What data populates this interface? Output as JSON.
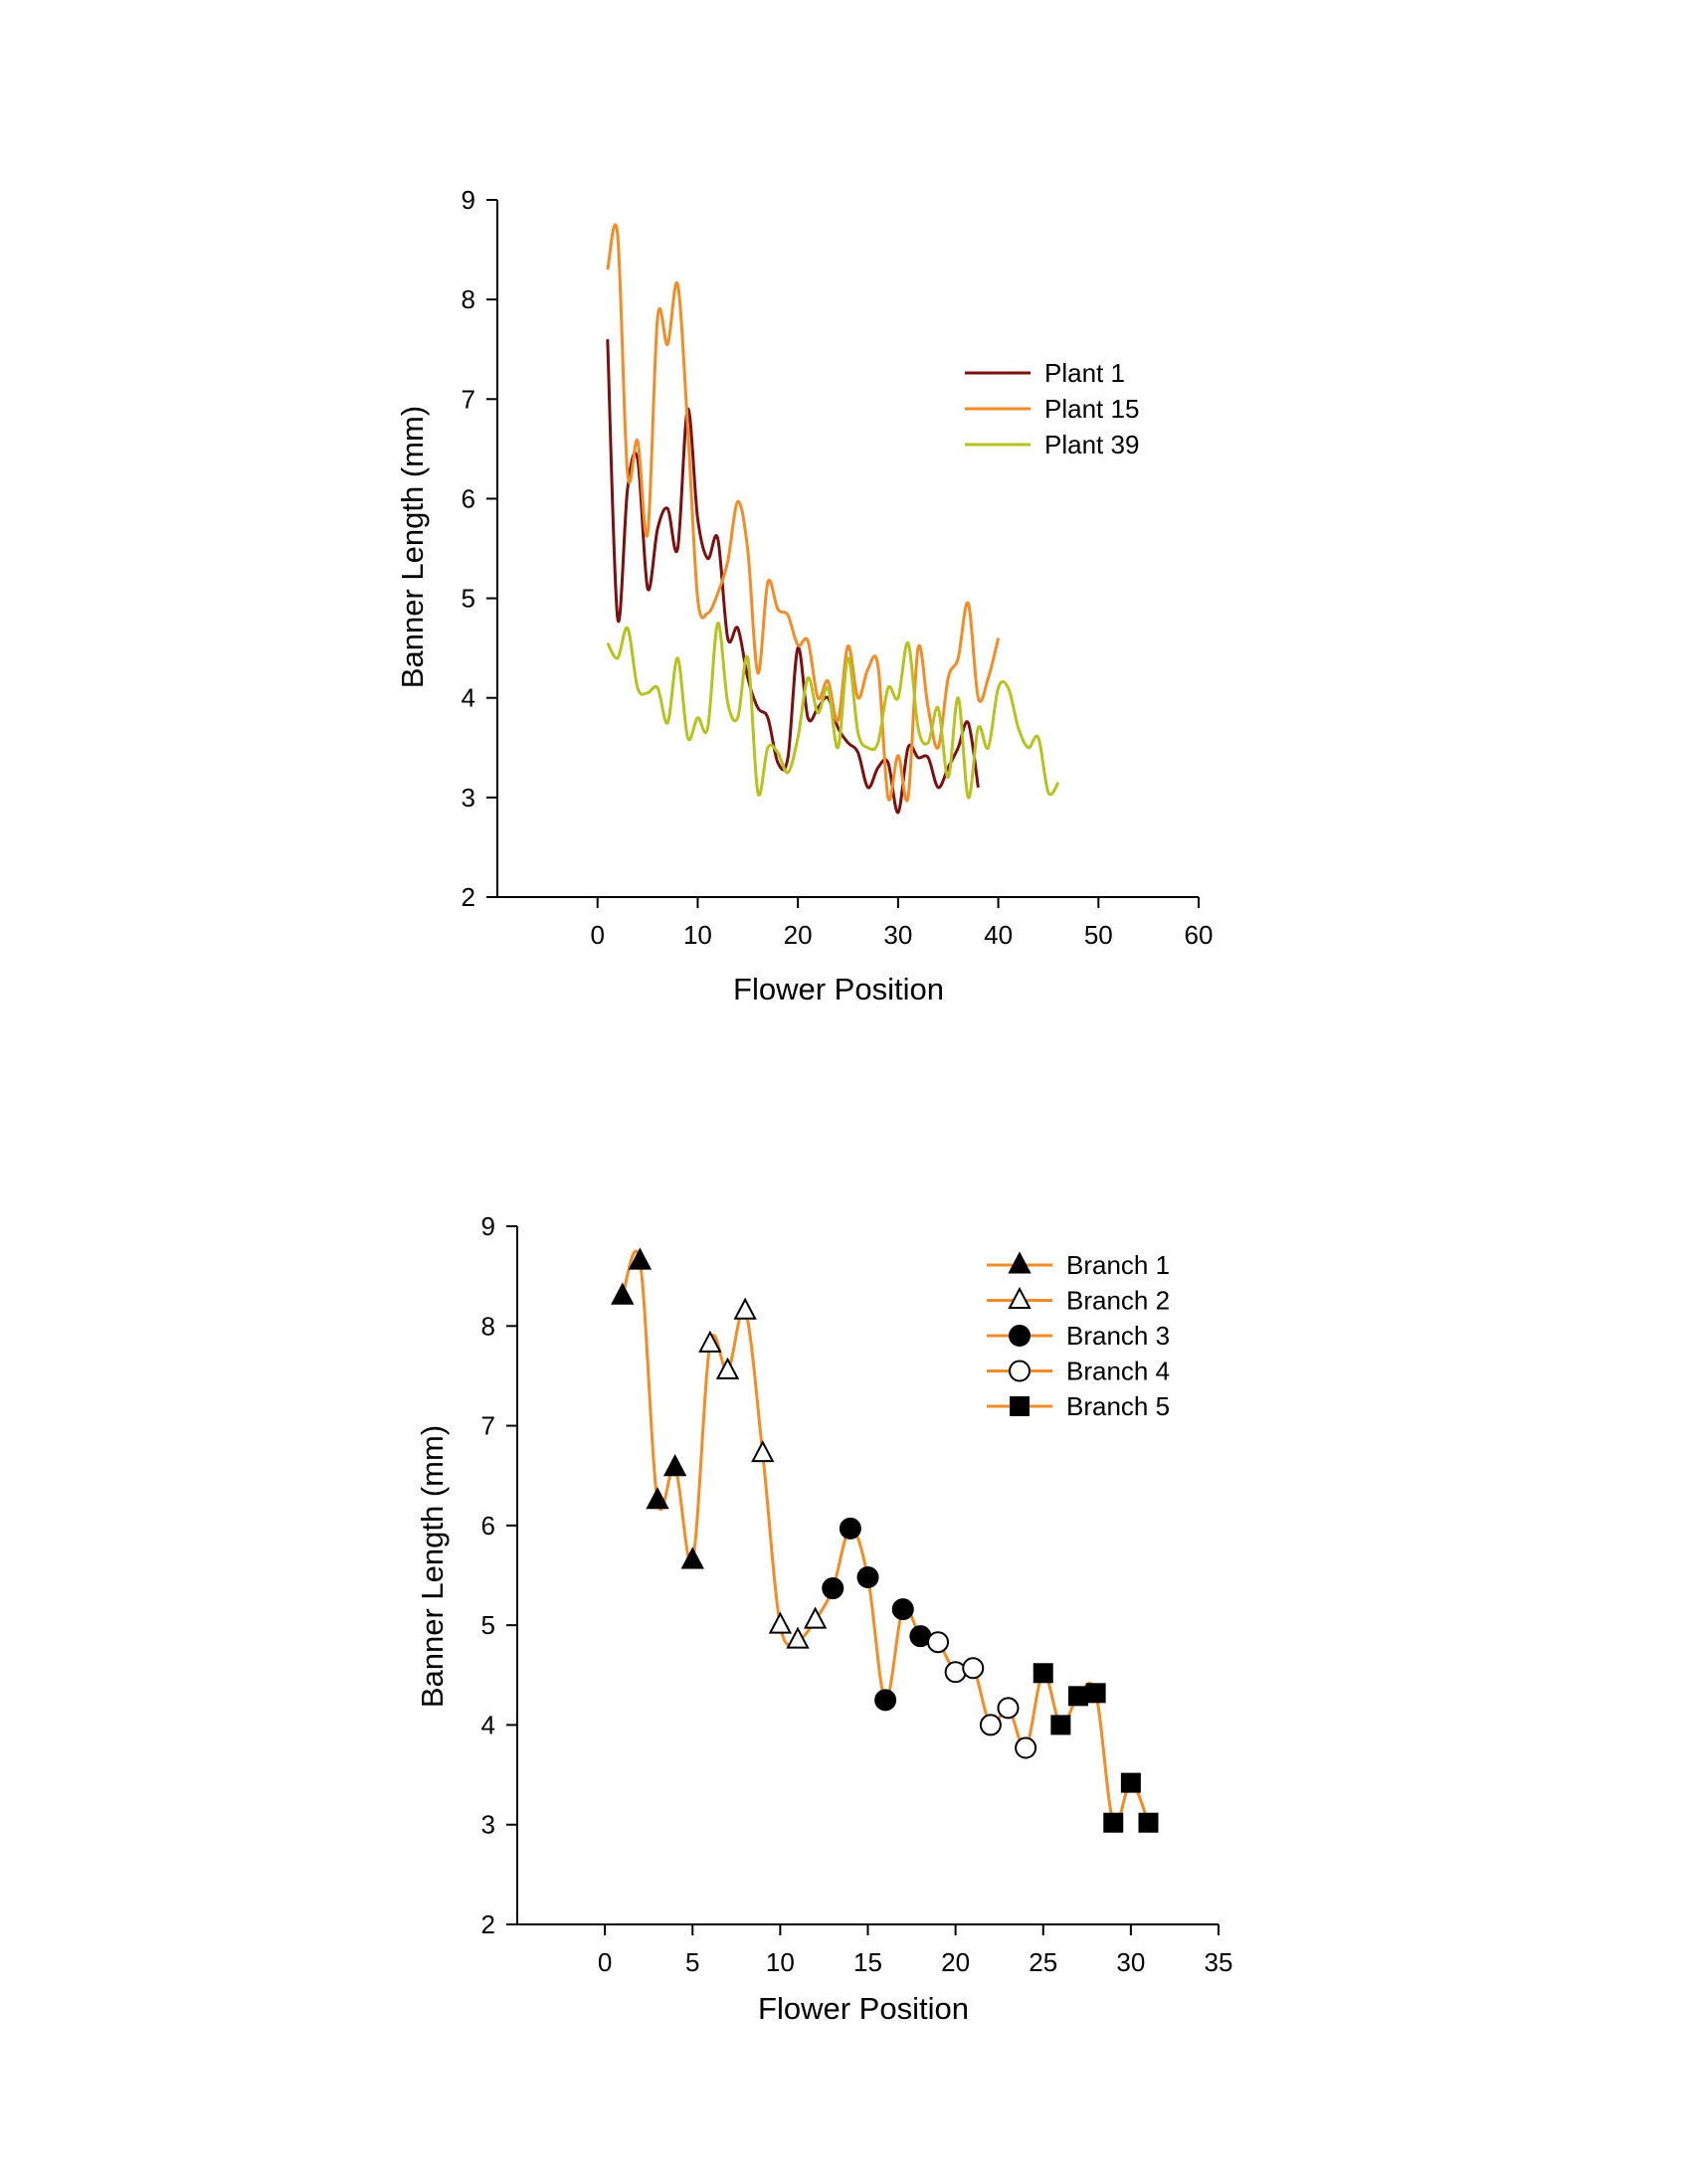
{
  "chart_data": [
    {
      "type": "line",
      "xlabel": "Flower Position",
      "ylabel": "Banner Length (mm)",
      "xlim": [
        -10,
        60
      ],
      "ylim": [
        2,
        9
      ],
      "xticks": [
        0,
        10,
        20,
        30,
        40,
        50,
        60
      ],
      "yticks": [
        2,
        3,
        4,
        5,
        6,
        7,
        8,
        9
      ],
      "legend_position": "top-right",
      "series": [
        {
          "name": "Plant 1",
          "color": "#7a1010",
          "x": [
            1,
            2,
            3,
            4,
            5,
            6,
            7,
            8,
            9,
            10,
            11,
            12,
            13,
            14,
            15,
            16,
            17,
            18,
            19,
            20,
            21,
            22,
            23,
            24,
            25,
            26,
            27,
            28,
            29,
            30,
            31,
            32,
            33,
            34,
            35,
            36,
            37,
            38,
            39
          ],
          "y": [
            7.6,
            4.8,
            6.1,
            6.4,
            5.1,
            5.7,
            5.9,
            5.5,
            6.9,
            5.8,
            5.4,
            5.6,
            4.6,
            4.7,
            4.2,
            3.9,
            3.8,
            3.35,
            3.4,
            4.5,
            3.8,
            3.9,
            4.0,
            3.7,
            3.55,
            3.45,
            3.1,
            3.3,
            3.35,
            2.85,
            3.5,
            3.4,
            3.4,
            3.1,
            3.3,
            3.5,
            3.75,
            3.1,
            null
          ]
        },
        {
          "name": "Plant 15",
          "color": "#f28c28",
          "x": [
            1,
            2,
            3,
            4,
            5,
            6,
            7,
            8,
            9,
            10,
            11,
            12,
            13,
            14,
            15,
            16,
            17,
            18,
            19,
            20,
            21,
            22,
            23,
            24,
            25,
            26,
            27,
            28,
            29,
            30,
            31,
            32,
            33,
            34,
            35,
            36,
            37,
            38,
            39,
            40
          ],
          "y": [
            8.3,
            8.65,
            6.25,
            6.58,
            5.65,
            7.82,
            7.55,
            8.15,
            6.72,
            5.0,
            4.85,
            5.05,
            5.37,
            5.97,
            5.48,
            4.25,
            5.16,
            4.89,
            4.83,
            4.53,
            4.57,
            4.0,
            4.17,
            3.77,
            4.52,
            4.0,
            4.29,
            4.32,
            3.0,
            3.42,
            3.0,
            4.5,
            3.9,
            3.5,
            4.2,
            4.4,
            4.95,
            4.0,
            4.2,
            4.6
          ]
        },
        {
          "name": "Plant 39",
          "color": "#b5c21f",
          "x": [
            1,
            2,
            3,
            4,
            5,
            6,
            7,
            8,
            9,
            10,
            11,
            12,
            13,
            14,
            15,
            16,
            17,
            18,
            19,
            20,
            21,
            22,
            23,
            24,
            25,
            26,
            27,
            28,
            29,
            30,
            31,
            32,
            33,
            34,
            35,
            36,
            37,
            38,
            39,
            40,
            41,
            42,
            43,
            44,
            45,
            46,
            47,
            48,
            49
          ],
          "y": [
            4.55,
            4.4,
            4.7,
            4.1,
            4.05,
            4.1,
            3.75,
            4.4,
            3.6,
            3.8,
            3.7,
            4.75,
            3.95,
            3.8,
            4.4,
            3.05,
            3.5,
            3.45,
            3.25,
            3.6,
            4.2,
            3.85,
            4.1,
            3.5,
            4.4,
            3.65,
            3.5,
            3.55,
            4.1,
            4.0,
            4.55,
            3.7,
            3.55,
            3.9,
            3.2,
            4.0,
            3.0,
            3.7,
            3.5,
            4.1,
            4.1,
            3.7,
            3.5,
            3.6,
            3.05,
            3.15,
            null,
            null,
            null
          ]
        }
      ]
    },
    {
      "type": "line",
      "xlabel": "Flower Position",
      "ylabel": "Banner Length (mm)",
      "xlim": [
        -5,
        35
      ],
      "ylim": [
        2,
        9
      ],
      "xticks": [
        0,
        5,
        10,
        15,
        20,
        25,
        30,
        35
      ],
      "yticks": [
        2,
        3,
        4,
        5,
        6,
        7,
        8,
        9
      ],
      "legend_position": "top-right",
      "line_color": "#f28c28",
      "series": [
        {
          "name": "Branch 1",
          "marker": "filled-triangle",
          "x": [
            1,
            2,
            3,
            4,
            5
          ],
          "y": [
            8.3,
            8.65,
            6.25,
            6.58,
            5.65
          ]
        },
        {
          "name": "Branch 2",
          "marker": "open-triangle",
          "x": [
            6,
            7,
            8,
            9,
            10,
            11,
            12
          ],
          "y": [
            7.82,
            7.55,
            8.15,
            6.72,
            5.0,
            4.85,
            5.05
          ]
        },
        {
          "name": "Branch 3",
          "marker": "filled-circle",
          "x": [
            13,
            14,
            15,
            16,
            17,
            18
          ],
          "y": [
            5.37,
            5.97,
            5.48,
            4.25,
            5.16,
            4.89
          ]
        },
        {
          "name": "Branch 4",
          "marker": "open-circle",
          "x": [
            19,
            20,
            21,
            22,
            23,
            24
          ],
          "y": [
            4.83,
            4.53,
            4.57,
            4.0,
            4.17,
            3.77
          ]
        },
        {
          "name": "Branch 5",
          "marker": "filled-square",
          "x": [
            25,
            26,
            27,
            28,
            29,
            30,
            31
          ],
          "y": [
            4.52,
            4.0,
            4.29,
            4.32,
            3.02,
            3.42,
            3.02
          ]
        }
      ]
    }
  ]
}
